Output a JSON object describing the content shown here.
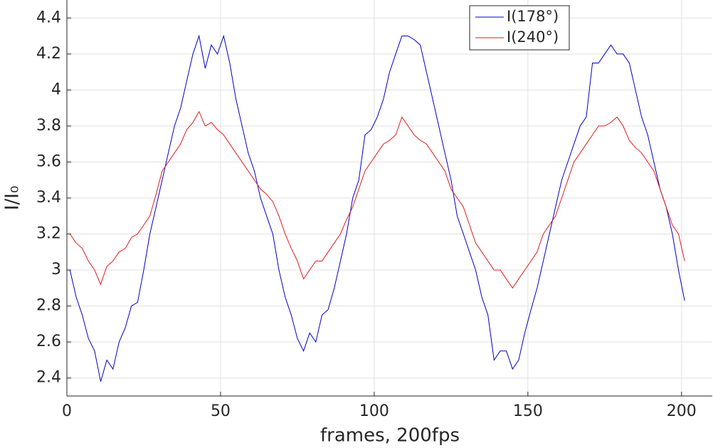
{
  "chart_data": {
    "type": "line",
    "xlabel": "frames, 200fps",
    "ylabel": "I/I₀",
    "x": [
      1,
      3,
      5,
      7,
      9,
      11,
      13,
      15,
      17,
      19,
      21,
      23,
      25,
      27,
      29,
      31,
      33,
      35,
      37,
      39,
      41,
      43,
      45,
      47,
      49,
      51,
      53,
      55,
      57,
      59,
      61,
      63,
      65,
      67,
      69,
      71,
      73,
      75,
      77,
      79,
      81,
      83,
      85,
      87,
      89,
      91,
      93,
      95,
      97,
      99,
      101,
      103,
      105,
      107,
      109,
      111,
      113,
      115,
      117,
      119,
      121,
      123,
      125,
      127,
      129,
      131,
      133,
      135,
      137,
      139,
      141,
      143,
      145,
      147,
      149,
      151,
      153,
      155,
      157,
      159,
      161,
      163,
      165,
      167,
      169,
      171,
      173,
      175,
      177,
      179,
      181,
      183,
      185,
      187,
      189,
      191,
      193,
      195,
      197,
      199,
      201
    ],
    "series": [
      {
        "name": "I(178°)",
        "color": "#0000c8",
        "values": [
          3.0,
          2.85,
          2.75,
          2.62,
          2.55,
          2.38,
          2.5,
          2.45,
          2.6,
          2.68,
          2.8,
          2.82,
          3.0,
          3.2,
          3.35,
          3.5,
          3.65,
          3.8,
          3.9,
          4.05,
          4.2,
          4.3,
          4.12,
          4.25,
          4.2,
          4.3,
          4.15,
          3.95,
          3.8,
          3.65,
          3.55,
          3.4,
          3.3,
          3.2,
          3.0,
          2.85,
          2.75,
          2.62,
          2.55,
          2.65,
          2.6,
          2.75,
          2.78,
          2.9,
          3.05,
          3.2,
          3.4,
          3.5,
          3.75,
          3.78,
          3.85,
          3.95,
          4.1,
          4.2,
          4.3,
          4.3,
          4.28,
          4.25,
          4.1,
          3.95,
          3.8,
          3.65,
          3.5,
          3.3,
          3.2,
          3.1,
          3.0,
          2.85,
          2.75,
          2.5,
          2.55,
          2.55,
          2.45,
          2.5,
          2.65,
          2.78,
          2.9,
          3.05,
          3.2,
          3.35,
          3.5,
          3.6,
          3.7,
          3.8,
          3.85,
          4.15,
          4.15,
          4.2,
          4.25,
          4.2,
          4.2,
          4.15,
          4.0,
          3.85,
          3.75,
          3.6,
          3.45,
          3.35,
          3.2,
          3.0,
          2.83
        ]
      },
      {
        "name": "I(240°)",
        "color": "#dc1e1e",
        "values": [
          3.2,
          3.15,
          3.12,
          3.05,
          3.0,
          2.92,
          3.02,
          3.05,
          3.1,
          3.12,
          3.18,
          3.2,
          3.25,
          3.3,
          3.42,
          3.55,
          3.6,
          3.65,
          3.7,
          3.78,
          3.82,
          3.88,
          3.8,
          3.82,
          3.78,
          3.75,
          3.7,
          3.65,
          3.6,
          3.55,
          3.5,
          3.45,
          3.42,
          3.38,
          3.3,
          3.2,
          3.12,
          3.05,
          2.95,
          3.0,
          3.05,
          3.05,
          3.1,
          3.15,
          3.2,
          3.28,
          3.35,
          3.45,
          3.55,
          3.6,
          3.65,
          3.7,
          3.72,
          3.75,
          3.85,
          3.8,
          3.75,
          3.72,
          3.7,
          3.65,
          3.6,
          3.55,
          3.45,
          3.4,
          3.35,
          3.25,
          3.15,
          3.1,
          3.05,
          3.0,
          3.0,
          2.95,
          2.9,
          2.95,
          3.0,
          3.05,
          3.1,
          3.2,
          3.25,
          3.3,
          3.4,
          3.5,
          3.6,
          3.65,
          3.7,
          3.75,
          3.8,
          3.8,
          3.82,
          3.85,
          3.8,
          3.72,
          3.68,
          3.65,
          3.6,
          3.55,
          3.45,
          3.35,
          3.25,
          3.2,
          3.05
        ]
      }
    ],
    "xlim": [
      0,
      210
    ],
    "xticks": [
      0,
      50,
      100,
      150,
      200
    ],
    "ylim": [
      2.3,
      4.5
    ],
    "yticks": [
      2.4,
      2.6,
      2.8,
      3,
      3.2,
      3.4,
      3.6,
      3.8,
      4,
      4.2,
      4.4
    ],
    "grid": true,
    "legend": "top right"
  }
}
